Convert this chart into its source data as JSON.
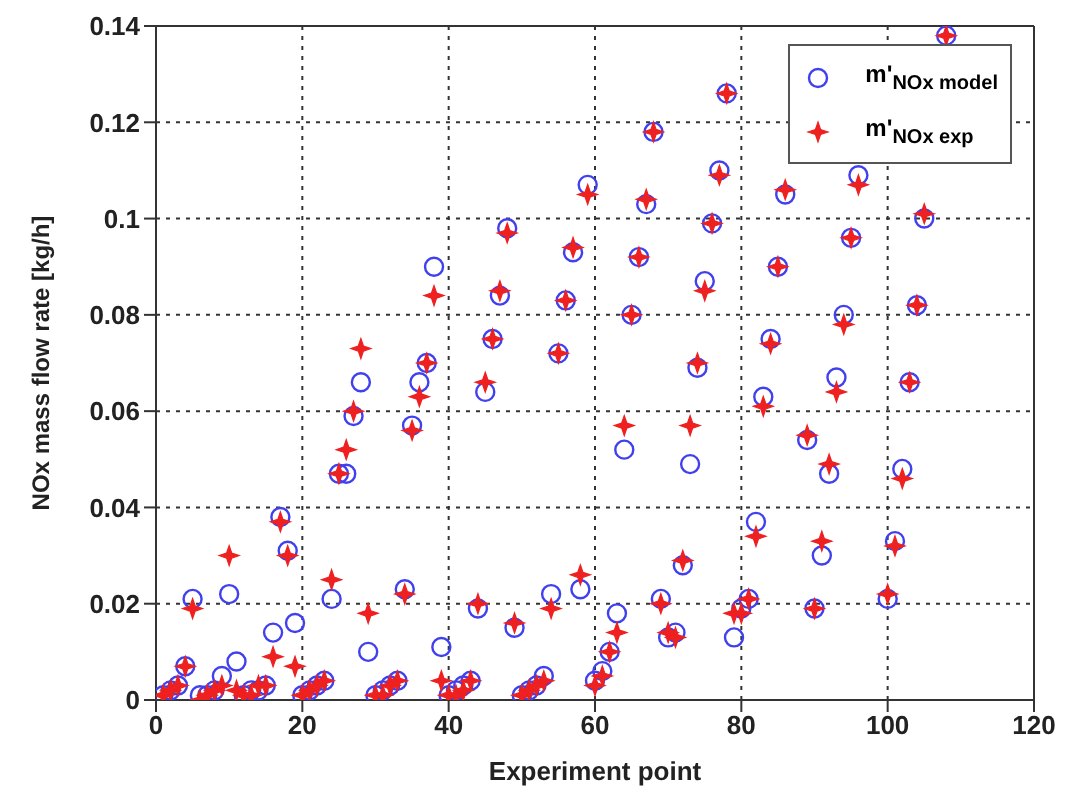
{
  "chart_data": {
    "type": "scatter",
    "xlabel": "Experiment point",
    "ylabel": "NOx mass flow rate [kg/h]",
    "x": [
      1,
      2,
      3,
      4,
      5,
      6,
      7,
      8,
      9,
      10,
      11,
      12,
      13,
      14,
      15,
      16,
      17,
      18,
      19,
      20,
      21,
      22,
      23,
      24,
      25,
      26,
      27,
      28,
      29,
      30,
      31,
      32,
      33,
      34,
      35,
      36,
      37,
      38,
      39,
      40,
      41,
      42,
      43,
      44,
      45,
      46,
      47,
      48,
      49,
      50,
      51,
      52,
      53,
      54,
      55,
      56,
      57,
      58,
      59,
      60,
      61,
      62,
      63,
      64,
      65,
      66,
      67,
      68,
      69,
      70,
      71,
      72,
      73,
      74,
      75,
      76,
      77,
      78,
      79,
      80,
      81,
      82,
      83,
      84,
      85,
      86,
      89,
      90,
      91,
      92,
      93,
      94,
      95,
      96,
      100,
      101,
      102,
      103,
      104,
      105,
      108
    ],
    "series": [
      {
        "name": "m'$_{NOx model}$",
        "color": "#4040ee",
        "marker": "circle",
        "values": [
          0.001,
          0.002,
          0.003,
          0.007,
          0.021,
          0.001,
          0.001,
          0.002,
          0.005,
          0.022,
          0.008,
          0.001,
          0.002,
          0.002,
          0.003,
          0.014,
          0.038,
          0.031,
          0.016,
          0.001,
          0.002,
          0.003,
          0.004,
          0.021,
          0.047,
          0.047,
          0.059,
          0.066,
          0.01,
          0.001,
          0.002,
          0.003,
          0.004,
          0.023,
          0.057,
          0.066,
          0.07,
          0.09,
          0.011,
          0.001,
          0.002,
          0.003,
          0.004,
          0.019,
          0.064,
          0.075,
          0.084,
          0.098,
          0.015,
          0.001,
          0.002,
          0.003,
          0.005,
          0.022,
          0.072,
          0.083,
          0.093,
          0.023,
          0.107,
          0.004,
          0.006,
          0.01,
          0.018,
          0.052,
          0.08,
          0.092,
          0.103,
          0.118,
          0.021,
          0.013,
          0.014,
          0.028,
          0.049,
          0.069,
          0.087,
          0.099,
          0.11,
          0.126,
          0.013,
          0.019,
          0.021,
          0.037,
          0.063,
          0.075,
          0.09,
          0.105,
          0.054,
          0.019,
          0.03,
          0.047,
          0.067,
          0.08,
          0.096,
          0.109,
          0.021,
          0.033,
          0.048,
          0.066,
          0.082,
          0.1,
          0.138
        ]
      },
      {
        "name": "m'$_{NOx exp}$",
        "color": "#ee2020",
        "marker": "star",
        "values": [
          0.001,
          0.002,
          0.003,
          0.007,
          0.019,
          0.0,
          0.001,
          0.002,
          0.003,
          0.03,
          0.002,
          0.001,
          0.001,
          0.003,
          0.003,
          0.009,
          0.037,
          0.03,
          0.007,
          0.001,
          0.002,
          0.003,
          0.004,
          0.025,
          0.047,
          0.052,
          0.06,
          0.073,
          0.018,
          0.001,
          0.001,
          0.003,
          0.004,
          0.022,
          0.056,
          0.063,
          0.07,
          0.084,
          0.004,
          0.001,
          0.001,
          0.002,
          0.004,
          0.02,
          0.066,
          0.075,
          0.085,
          0.097,
          0.016,
          0.001,
          0.002,
          0.003,
          0.004,
          0.019,
          0.072,
          0.083,
          0.094,
          0.026,
          0.105,
          0.003,
          0.005,
          0.01,
          0.014,
          0.057,
          0.08,
          0.092,
          0.104,
          0.118,
          0.02,
          0.014,
          0.013,
          0.029,
          0.057,
          0.07,
          0.085,
          0.099,
          0.109,
          0.126,
          0.018,
          0.018,
          0.021,
          0.034,
          0.061,
          0.074,
          0.09,
          0.106,
          0.055,
          0.019,
          0.033,
          0.049,
          0.064,
          0.078,
          0.096,
          0.107,
          0.022,
          0.032,
          0.046,
          0.066,
          0.082,
          0.101,
          0.138
        ]
      }
    ],
    "xlim": [
      0,
      120
    ],
    "xticks": [
      0,
      20,
      40,
      60,
      80,
      100,
      120
    ],
    "ylim": [
      0,
      0.14
    ],
    "yticks": [
      0,
      0.02,
      0.04,
      0.06,
      0.08,
      0.1,
      0.12,
      0.14
    ],
    "grid": true,
    "legend": "top right"
  }
}
